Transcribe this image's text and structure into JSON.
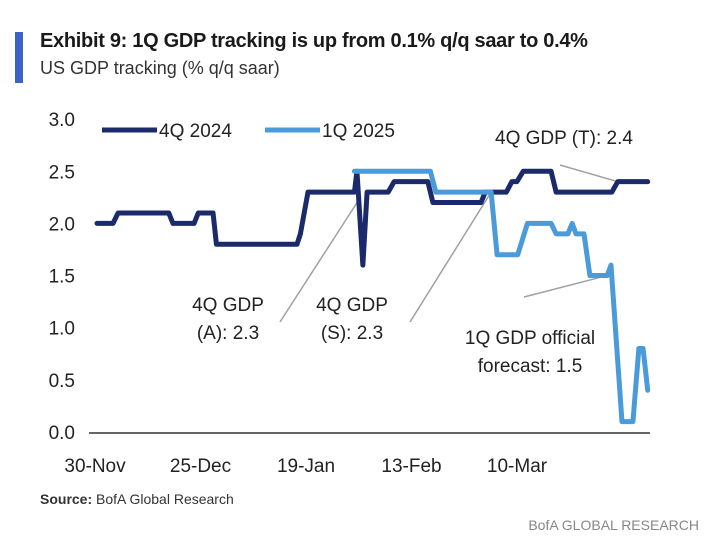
{
  "header": {
    "title": "Exhibit 9: 1Q GDP tracking is up from 0.1% q/q saar to 0.4%",
    "subtitle": "US GDP tracking (% q/q saar)"
  },
  "footer": {
    "source_label": "Source:",
    "source_text": "BofA Global Research",
    "brand": "BofA GLOBAL RESEARCH"
  },
  "colors": {
    "accent": "#3d63c9",
    "series_4q": "#1b2a6b",
    "series_1q": "#4b9ad9",
    "leader": "#a0a0a0"
  },
  "chart_data": {
    "type": "line",
    "title": "US GDP tracking (% q/q saar)",
    "xlabel": "",
    "ylabel": "% q/q saar",
    "x_unit": "days since 30-Nov-2024",
    "xlim": [
      0,
      130.5
    ],
    "ylim": [
      0,
      3
    ],
    "yticks": [
      "0.0",
      "0.5",
      "1.0",
      "1.5",
      "2.0",
      "2.5",
      "3.0"
    ],
    "xticks": [
      {
        "day": 0,
        "label": "30-Nov"
      },
      {
        "day": 25,
        "label": "25-Dec"
      },
      {
        "day": 50,
        "label": "19-Jan"
      },
      {
        "day": 75,
        "label": "13-Feb"
      },
      {
        "day": 100,
        "label": "10-Mar"
      }
    ],
    "legend": "top-left",
    "series": [
      {
        "name": "4Q 2024",
        "points": [
          [
            0,
            2.0
          ],
          [
            3.8,
            2.0
          ],
          [
            5,
            2.1
          ],
          [
            17,
            2.1
          ],
          [
            18,
            2.0
          ],
          [
            23,
            2.0
          ],
          [
            24,
            2.1
          ],
          [
            27.5,
            2.1
          ],
          [
            28.3,
            1.8
          ],
          [
            47.4,
            1.8
          ],
          [
            48.2,
            1.9
          ],
          [
            50,
            2.3
          ],
          [
            61,
            2.3
          ],
          [
            61.6,
            2.5
          ],
          [
            63,
            1.6
          ],
          [
            64,
            2.3
          ],
          [
            69,
            2.3
          ],
          [
            70.4,
            2.4
          ],
          [
            78.4,
            2.4
          ],
          [
            79.6,
            2.2
          ],
          [
            91,
            2.2
          ],
          [
            92,
            2.3
          ],
          [
            97,
            2.3
          ],
          [
            98.3,
            2.4
          ],
          [
            99.5,
            2.4
          ],
          [
            101,
            2.5
          ],
          [
            107.6,
            2.5
          ],
          [
            108.8,
            2.3
          ],
          [
            122,
            2.3
          ],
          [
            123.4,
            2.4
          ],
          [
            130.5,
            2.4
          ]
        ]
      },
      {
        "name": "1Q 2025",
        "points": [
          [
            61,
            2.5
          ],
          [
            79,
            2.5
          ],
          [
            80.3,
            2.3
          ],
          [
            93.4,
            2.3
          ],
          [
            94.8,
            1.7
          ],
          [
            99.7,
            1.7
          ],
          [
            102,
            2.0
          ],
          [
            107.6,
            2.0
          ],
          [
            108.8,
            1.9
          ],
          [
            111.6,
            1.9
          ],
          [
            112.6,
            2.0
          ],
          [
            113.5,
            1.9
          ],
          [
            115.4,
            1.9
          ],
          [
            116.8,
            1.5
          ],
          [
            120.9,
            1.5
          ],
          [
            121.8,
            1.6
          ],
          [
            124.4,
            0.1
          ],
          [
            127,
            0.1
          ],
          [
            128.4,
            0.8
          ],
          [
            129.4,
            0.8
          ],
          [
            130.5,
            0.4
          ]
        ]
      }
    ],
    "annotations": [
      {
        "lines": [
          "4Q GDP",
          "(A): 2.3"
        ],
        "day": 62,
        "value": 2.3
      },
      {
        "lines": [
          "4Q GDP",
          "(S): 2.3"
        ],
        "day": 93.4,
        "value": 2.3
      },
      {
        "lines": [
          "4Q GDP (T): 2.4"
        ],
        "day": 123.4,
        "value": 2.4
      },
      {
        "lines": [
          "1Q GDP official",
          "forecast: 1.5"
        ],
        "day": 120.9,
        "value": 1.5
      }
    ]
  }
}
